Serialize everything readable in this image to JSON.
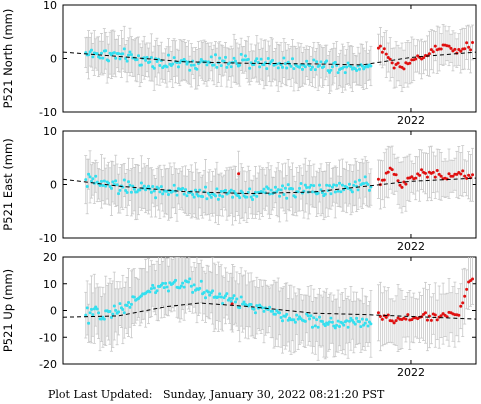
{
  "footer": {
    "label": "Plot Last Updated:",
    "timestamp": "Sunday, January 30, 2022 08:21:20 PST"
  },
  "colors": {
    "main_points": "#33e0f0",
    "recent_points": "#e01010",
    "error_bars": "#c8c8c8",
    "trend": "#000000"
  },
  "chart_data": [
    {
      "type": "scatter",
      "ylabel": "P521 North (mm)",
      "ylim": [
        -10,
        10
      ],
      "yticks": [
        10,
        0,
        -10
      ],
      "xticks": [
        {
          "value": 2022.0,
          "label": "2022"
        }
      ],
      "xlim": [
        2020.93,
        2022.2
      ],
      "error_bar_mm": 3.5,
      "series": [
        {
          "values": [
            [
              2021.0,
              1.0
            ],
            [
              2021.1,
              0.5
            ],
            [
              2021.2,
              -0.5
            ],
            [
              2021.3,
              -1.0
            ],
            [
              2021.4,
              -0.8
            ],
            [
              2021.5,
              -0.6
            ],
            [
              2021.6,
              -1.0
            ],
            [
              2021.7,
              -1.2
            ],
            [
              2021.8,
              -1.5
            ],
            [
              2021.9,
              -1.2
            ]
          ]
        },
        {
          "values": [
            [
              2021.91,
              1.5
            ],
            [
              2021.94,
              -1.0
            ],
            [
              2021.97,
              -2.0
            ],
            [
              2022.0,
              -0.5
            ],
            [
              2022.05,
              0.8
            ],
            [
              2022.1,
              2.2
            ],
            [
              2022.15,
              1.5
            ],
            [
              2022.18,
              2.5
            ]
          ]
        }
      ],
      "trend": [
        [
          2020.93,
          1.2
        ],
        [
          2021.1,
          0.4
        ],
        [
          2021.3,
          -0.6
        ],
        [
          2021.5,
          -0.9
        ],
        [
          2021.7,
          -1.0
        ],
        [
          2021.85,
          -1.2
        ],
        [
          2022.0,
          0.2
        ],
        [
          2022.2,
          1.2
        ]
      ]
    },
    {
      "type": "scatter",
      "ylabel": "P521 East (mm)",
      "ylim": [
        -10,
        10
      ],
      "yticks": [
        10,
        0,
        -10
      ],
      "xticks": [
        {
          "value": 2022.0,
          "label": "2022"
        }
      ],
      "xlim": [
        2020.93,
        2022.2
      ],
      "error_bar_mm": 4,
      "series": [
        {
          "values": [
            [
              2021.0,
              0.8
            ],
            [
              2021.1,
              -0.5
            ],
            [
              2021.2,
              -1.0
            ],
            [
              2021.3,
              -1.5
            ],
            [
              2021.4,
              -1.8
            ],
            [
              2021.5,
              -1.6
            ],
            [
              2021.6,
              -1.2
            ],
            [
              2021.7,
              -1.0
            ],
            [
              2021.8,
              -0.8
            ],
            [
              2021.9,
              0.5
            ]
          ]
        },
        {
          "values": [
            [
              2021.47,
              2.0
            ],
            [
              2021.91,
              0.5
            ],
            [
              2021.94,
              3.0
            ],
            [
              2021.97,
              -0.5
            ],
            [
              2022.0,
              1.5
            ],
            [
              2022.05,
              2.5
            ],
            [
              2022.1,
              1.5
            ],
            [
              2022.15,
              1.8
            ],
            [
              2022.18,
              1.5
            ]
          ]
        }
      ],
      "trend": [
        [
          2020.93,
          1.0
        ],
        [
          2021.1,
          -0.3
        ],
        [
          2021.3,
          -1.3
        ],
        [
          2021.5,
          -1.7
        ],
        [
          2021.7,
          -1.4
        ],
        [
          2021.85,
          -0.4
        ],
        [
          2022.0,
          0.6
        ],
        [
          2022.2,
          1.2
        ]
      ]
    },
    {
      "type": "scatter",
      "ylabel": "P521 Up (mm)",
      "ylim": [
        -20,
        20
      ],
      "yticks": [
        20,
        10,
        0,
        -10,
        -20
      ],
      "xticks": [
        {
          "value": 2022.0,
          "label": "2022"
        }
      ],
      "xlim": [
        2020.93,
        2022.2
      ],
      "error_bar_mm": 10,
      "series": [
        {
          "values": [
            [
              2021.0,
              -2.0
            ],
            [
              2021.1,
              0.0
            ],
            [
              2021.2,
              8.0
            ],
            [
              2021.3,
              10.0
            ],
            [
              2021.4,
              6.0
            ],
            [
              2021.5,
              2.0
            ],
            [
              2021.6,
              -2.0
            ],
            [
              2021.7,
              -4.0
            ],
            [
              2021.8,
              -5.0
            ],
            [
              2021.9,
              -4.0
            ]
          ]
        },
        {
          "values": [
            [
              2021.45,
              2.5
            ],
            [
              2021.92,
              -2.0
            ],
            [
              2021.95,
              -4.0
            ],
            [
              2021.98,
              -3.0
            ],
            [
              2022.05,
              -2.0
            ],
            [
              2022.1,
              -2.0
            ],
            [
              2022.15,
              -1.0
            ],
            [
              2022.18,
              11.5
            ]
          ]
        }
      ],
      "trend": [
        [
          2020.93,
          -2.5
        ],
        [
          2021.1,
          -2.0
        ],
        [
          2021.25,
          1.5
        ],
        [
          2021.35,
          2.8
        ],
        [
          2021.5,
          1.5
        ],
        [
          2021.7,
          -1.0
        ],
        [
          2021.85,
          -1.5
        ],
        [
          2022.2,
          -3.2
        ]
      ]
    }
  ]
}
